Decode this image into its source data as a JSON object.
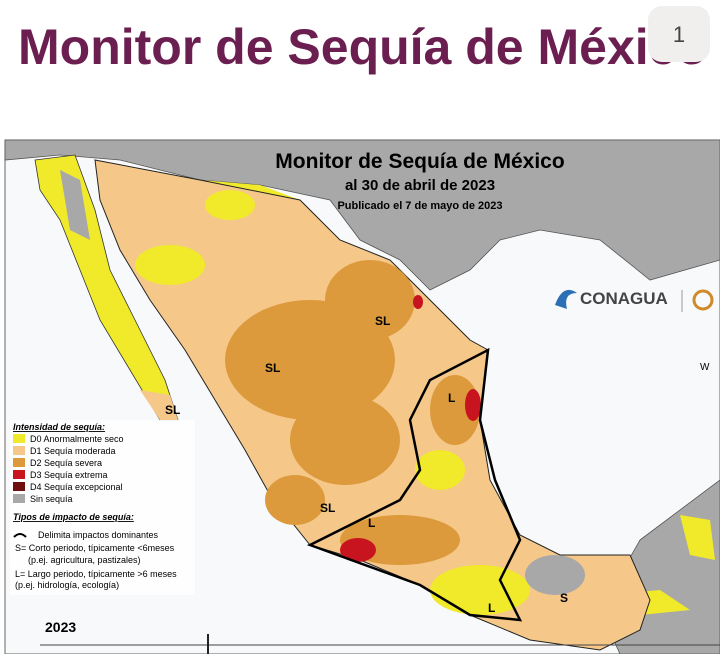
{
  "header": {
    "title": "Monitor de Sequía de México",
    "badge": "1"
  },
  "map": {
    "title": "Monitor de Sequía de México",
    "subtitle": "al 30 de abril de 2023",
    "published": "Publicado el 7 de mayo de 2023",
    "logo": "CONAGUA",
    "region_labels": [
      "SL",
      "SL",
      "SL",
      "SL",
      "L",
      "L",
      "L",
      "S"
    ],
    "compass": "W",
    "legend": {
      "heading": "Intensidad de sequía:",
      "items": [
        {
          "label": "D0 Anormalmente seco",
          "color": "#f0ea2a"
        },
        {
          "label": "D1 Sequía moderada",
          "color": "#f5c88a"
        },
        {
          "label": "D2 Sequía severa",
          "color": "#dc9a3c"
        },
        {
          "label": "D3 Sequía extrema",
          "color": "#c8141e"
        },
        {
          "label": "D4 Sequía excepcional",
          "color": "#6e0e0e"
        },
        {
          "label": "Sin sequía",
          "color": "#a8a8a8"
        }
      ],
      "impact_heading": "Tipos de impacto de sequía:",
      "impact_lines": [
        "Delimita impactos dominantes",
        "S= Corto periodo, típicamente <6meses",
        "(p.ej. agricultura, pastizales)",
        "L= Largo periodo, típicamente >6 meses",
        "(p.ej. hidrología, ecología)"
      ]
    }
  },
  "timeline": {
    "year": "2023"
  }
}
